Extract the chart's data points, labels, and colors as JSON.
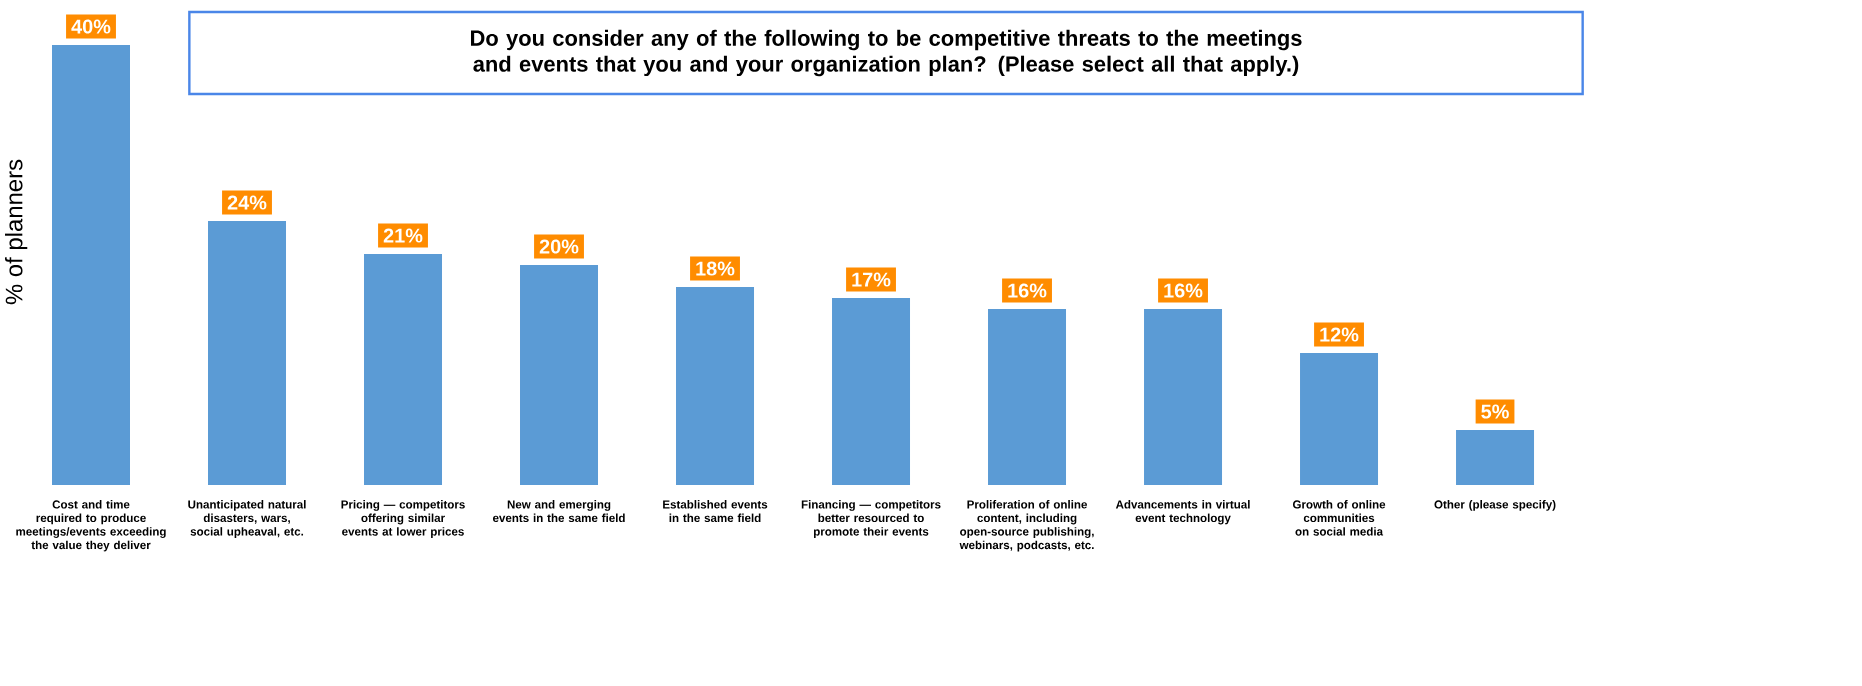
{
  "chart_data": {
    "type": "bar",
    "title": "Do you consider any of the following to be competitive threats to the meetings and events that you and your organization plan? (Please select all that apply.)",
    "ylabel": "% of planners",
    "categories": [
      "Cost and time required to produce meetings/events exceeding the value they deliver",
      "Unanticipated natural disasters, wars, social upheaval, etc.",
      "Pricing — competitors offering similar events at lower prices",
      "New and emerging events in the same field",
      "Established events in the same field",
      "Financing — competitors better resourced to promote their events",
      "Proliferation of online content, including open-source publishing, webinars, podcasts, etc.",
      "Advancements in virtual event technology",
      "Growth of online communities on social media",
      "Other (please specify)"
    ],
    "values": [
      40,
      24,
      21,
      20,
      18,
      17,
      16,
      16,
      12,
      5
    ],
    "value_labels": [
      "40%",
      "24%",
      "21%",
      "20%",
      "18%",
      "17%",
      "16%",
      "16%",
      "12%",
      "5%"
    ],
    "color": "#5b9bd5"
  }
}
